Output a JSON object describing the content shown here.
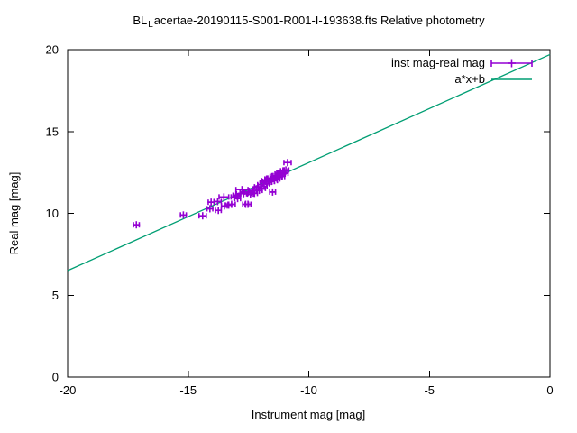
{
  "window_title": "gnuplot graph",
  "title": {
    "prefix": "BL",
    "subscript": "L",
    "rest": "acertae-20190115-S001-R001-I-193638.fts Relative photometry",
    "full_text": "BL_Lacertae-20190115-S001-R001-I-193638.fts Relative photometry"
  },
  "colors": {
    "background": "#ffffff",
    "axis": "#000000",
    "text": "#000000",
    "points": "#9400D3",
    "fit_line": "#009E73"
  },
  "legend": {
    "entries": [
      {
        "label": "inst mag-real mag",
        "style": "xerrorbars",
        "color": "#9400D3"
      },
      {
        "label": "a*x+b",
        "style": "line",
        "color": "#009E73"
      }
    ]
  },
  "chart_data": {
    "type": "scatter",
    "title": "BL_Lacertae-20190115-S001-R001-I-193638.fts Relative photometry",
    "xlabel": "Instrument mag [mag]",
    "ylabel": "Real mag [mag]",
    "xlim": [
      -20,
      0
    ],
    "ylim": [
      0,
      20
    ],
    "xticks": [
      {
        "value": -20,
        "label": "-20"
      },
      {
        "value": -15,
        "label": "-15"
      },
      {
        "value": -10,
        "label": "-10"
      },
      {
        "value": -5,
        "label": "-5"
      },
      {
        "value": 0,
        "label": "0"
      }
    ],
    "yticks": [
      {
        "value": 0,
        "label": "0"
      },
      {
        "value": 5,
        "label": "5"
      },
      {
        "value": 10,
        "label": "10"
      },
      {
        "value": 15,
        "label": "15"
      },
      {
        "value": 20,
        "label": "20"
      }
    ],
    "grid": false,
    "legend_position": "top-right-inside",
    "series": [
      {
        "name": "inst mag-real mag",
        "type": "scatter_xerrorbars",
        "color": "#9400D3",
        "points_format": [
          "instrument_mag",
          "real_mag",
          "xerr"
        ],
        "points": [
          [
            -17.15,
            9.3,
            0.12
          ],
          [
            -15.2,
            9.9,
            0.12
          ],
          [
            -14.4,
            9.85,
            0.15
          ],
          [
            -14.1,
            10.28,
            0.12
          ],
          [
            -14.05,
            10.68,
            0.12
          ],
          [
            -13.78,
            10.72,
            0.15
          ],
          [
            -13.75,
            10.18,
            0.12
          ],
          [
            -13.52,
            11.0,
            0.2
          ],
          [
            -13.5,
            10.45,
            0.12
          ],
          [
            -13.32,
            10.5,
            0.12
          ],
          [
            -13.2,
            10.55,
            0.15
          ],
          [
            -13.1,
            11.0,
            0.12
          ],
          [
            -13.02,
            11.1,
            0.12
          ],
          [
            -12.95,
            10.9,
            0.12
          ],
          [
            -12.85,
            11.2,
            0.15
          ],
          [
            -12.77,
            11.45,
            0.25
          ],
          [
            -12.7,
            11.2,
            0.12
          ],
          [
            -12.62,
            10.55,
            0.12
          ],
          [
            -12.52,
            10.55,
            0.12
          ],
          [
            -12.5,
            11.3,
            0.15
          ],
          [
            -12.42,
            11.18,
            0.12
          ],
          [
            -12.32,
            11.4,
            0.15
          ],
          [
            -12.25,
            11.22,
            0.12
          ],
          [
            -12.18,
            11.5,
            0.12
          ],
          [
            -12.1,
            11.62,
            0.15
          ],
          [
            -12.05,
            11.4,
            0.12
          ],
          [
            -12.0,
            11.75,
            0.12
          ],
          [
            -11.95,
            11.52,
            0.15
          ],
          [
            -11.9,
            11.9,
            0.12
          ],
          [
            -11.85,
            11.65,
            0.12
          ],
          [
            -11.8,
            12.0,
            0.15
          ],
          [
            -11.75,
            11.8,
            0.12
          ],
          [
            -11.7,
            12.1,
            0.12
          ],
          [
            -11.65,
            11.9,
            0.12
          ],
          [
            -11.6,
            12.15,
            0.15
          ],
          [
            -11.55,
            11.95,
            0.12
          ],
          [
            -11.5,
            11.3,
            0.12
          ],
          [
            -11.48,
            12.25,
            0.12
          ],
          [
            -11.42,
            12.0,
            0.12
          ],
          [
            -11.38,
            12.3,
            0.15
          ],
          [
            -11.32,
            12.1,
            0.12
          ],
          [
            -11.28,
            12.4,
            0.12
          ],
          [
            -11.22,
            12.2,
            0.12
          ],
          [
            -11.18,
            12.45,
            0.15
          ],
          [
            -11.12,
            12.25,
            0.12
          ],
          [
            -11.08,
            12.5,
            0.12
          ],
          [
            -11.02,
            12.6,
            0.15
          ],
          [
            -10.98,
            12.45,
            0.12
          ],
          [
            -10.95,
            12.65,
            0.12
          ],
          [
            -10.88,
            13.1,
            0.15
          ]
        ]
      },
      {
        "name": "a*x+b",
        "type": "line",
        "color": "#009E73",
        "fit": {
          "a": 0.66,
          "b": 19.7
        },
        "x_range": [
          -20,
          0
        ]
      }
    ]
  }
}
